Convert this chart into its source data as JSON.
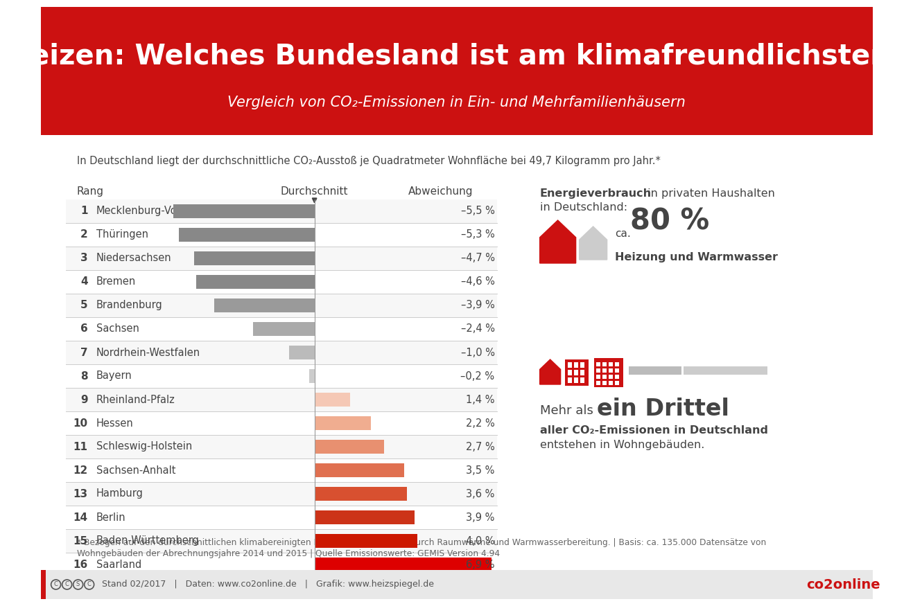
{
  "title": "Heizen: Welches Bundesland ist am klimafreundlichsten?",
  "subtitle": "Vergleich von CO₂-Emissionen in Ein- und Mehrfamilienhäusern",
  "header_bg": "#cc1111",
  "body_bg": "#ffffff",
  "info_text": "In Deutschland liegt der durchschnittliche CO₂-Ausstoß je Quadratmeter Wohnfläche bei 49,7 Kilogramm pro Jahr.*",
  "col_rang": "Rang",
  "col_durchschnitt": "Durchschnitt",
  "col_abweichung": "Abweichung",
  "states": [
    "Mecklenburg-Vorpommern",
    "Thüringen",
    "Niedersachsen",
    "Bremen",
    "Brandenburg",
    "Sachsen",
    "Nordrhein-Westfalen",
    "Bayern",
    "Rheinland-Pfalz",
    "Hessen",
    "Schleswig-Holstein",
    "Sachsen-Anhalt",
    "Hamburg",
    "Berlin",
    "Baden-Württemberg",
    "Saarland"
  ],
  "values": [
    -5.5,
    -5.3,
    -4.7,
    -4.6,
    -3.9,
    -2.4,
    -1.0,
    -0.2,
    1.4,
    2.2,
    2.7,
    3.5,
    3.6,
    3.9,
    4.0,
    6.9
  ],
  "value_labels": [
    "–5,5 %",
    "–5,3 %",
    "–4,7 %",
    "–4,6 %",
    "–3,9 %",
    "–2,4 %",
    "–1,0 %",
    "–0,2 %",
    "1,4 %",
    "2,2 %",
    "2,7 %",
    "3,5 %",
    "3,6 %",
    "3,9 %",
    "4,0 %",
    "6,9 %"
  ],
  "bar_colors_neg": [
    "#888888",
    "#888888",
    "#888888",
    "#888888",
    "#9a9a9a",
    "#aaaaaa",
    "#bbbbbb",
    "#cccccc"
  ],
  "bar_colors_pos": [
    "#f5c8b5",
    "#f0ad90",
    "#e89070",
    "#e07050",
    "#d85030",
    "#cc3318",
    "#cc1800",
    "#dd0000"
  ],
  "footnote_line1": "* Bezogen auf den durchschnittlichen klimabereinigten Heizenergieverbrauch durch Raumwärme und Warmwasserbereitung. | Basis: ca. 135.000 Datensätze von",
  "footnote_line2": "Wohngebäuden der Abrechnungsjahre 2014 und 2015 | Quelle Emissionswerte: GEMIS Version 4.94",
  "footer_text": "Stand 02/2017   |   Daten: www.co2online.de   |   Grafik: www.heizspiegel.de",
  "text_color_dark": "#444444",
  "text_color_mid": "#666666",
  "text_color_red": "#cc1111",
  "footer_bg": "#e8e8e8",
  "row_bg_alt": "#f7f7f7"
}
